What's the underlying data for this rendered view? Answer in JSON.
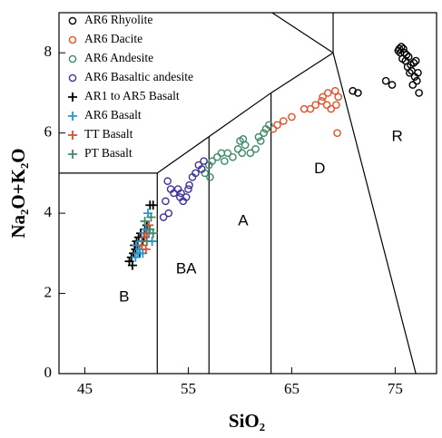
{
  "chart_data": {
    "type": "scatter",
    "x_label": "SiO₂",
    "y_label": "Na₂O+K₂O",
    "xlim": [
      42.5,
      79
    ],
    "ylim": [
      0,
      9
    ],
    "xticks": [
      45,
      55,
      65,
      75
    ],
    "yticks": [
      0,
      2,
      4,
      6,
      8
    ],
    "grid": false,
    "legend": "upper left",
    "boundaries": [
      [
        [
          42.5,
          5
        ],
        [
          52,
          5
        ]
      ],
      [
        [
          52,
          0
        ],
        [
          52,
          5
        ]
      ],
      [
        [
          52,
          5
        ],
        [
          63,
          7
        ]
      ],
      [
        [
          63,
          7
        ],
        [
          69,
          8
        ]
      ],
      [
        [
          57,
          0
        ],
        [
          57,
          5.91
        ]
      ],
      [
        [
          63,
          0
        ],
        [
          63,
          7
        ]
      ],
      [
        [
          69,
          8
        ],
        [
          69,
          9
        ]
      ],
      [
        [
          63.1,
          9
        ],
        [
          69,
          8
        ]
      ],
      [
        [
          69,
          8
        ],
        [
          77,
          0
        ]
      ]
    ],
    "annotations": [
      {
        "text": "B",
        "x": 48.8,
        "y": 1.9
      },
      {
        "text": "BA",
        "x": 54.8,
        "y": 2.6
      },
      {
        "text": "A",
        "x": 60.3,
        "y": 3.8
      },
      {
        "text": "D",
        "x": 67.7,
        "y": 5.1
      },
      {
        "text": "R",
        "x": 75.2,
        "y": 5.9
      }
    ],
    "series": [
      {
        "name": "AR6 Rhyolite",
        "color": "#000000",
        "marker": "circle",
        "x": [
          75.4,
          75.6,
          75.8,
          75.5,
          75.9,
          76.1,
          76.3,
          76.0,
          75.7,
          76.5,
          76.8,
          77.0,
          76.6,
          77.2,
          76.9,
          77.1,
          76.7,
          77.3,
          76.4,
          74.1,
          74.7,
          70.9,
          71.4,
          75.3,
          76.2
        ],
        "values": [
          8.1,
          8.15,
          8.1,
          8.0,
          8.0,
          7.95,
          7.9,
          7.8,
          7.85,
          7.7,
          7.75,
          7.8,
          7.55,
          7.5,
          7.4,
          7.3,
          7.2,
          7.0,
          7.5,
          7.3,
          7.2,
          7.05,
          7.0,
          8.05,
          7.65
        ]
      },
      {
        "name": "AR6 Dacite",
        "color": "#e0502a",
        "marker": "circle",
        "x": [
          63.2,
          63.6,
          64.2,
          65.0,
          66.2,
          66.8,
          67.3,
          68.0,
          68.5,
          69.2,
          69.5,
          68.8,
          69.3,
          69.4,
          67.9,
          68.4
        ],
        "values": [
          6.1,
          6.2,
          6.3,
          6.4,
          6.6,
          6.6,
          6.7,
          6.9,
          7.0,
          7.05,
          6.9,
          6.6,
          6.7,
          6.0,
          6.8,
          6.7
        ]
      },
      {
        "name": "AR6 Andesite",
        "color": "#3f8a66",
        "marker": "circle",
        "x": [
          56.6,
          57.0,
          57.3,
          57.8,
          58.2,
          58.8,
          59.3,
          59.8,
          60.0,
          60.3,
          60.5,
          61.0,
          61.5,
          62.0,
          62.3,
          62.5,
          62.8,
          57.1,
          60.2,
          61.8,
          58.5
        ],
        "values": [
          5.0,
          5.2,
          5.3,
          5.4,
          5.5,
          5.5,
          5.4,
          5.6,
          5.8,
          5.85,
          5.7,
          5.5,
          5.6,
          5.8,
          6.0,
          6.1,
          6.2,
          4.9,
          5.5,
          5.9,
          5.3
        ]
      },
      {
        "name": "AR6 Basaltic andesite",
        "color": "#3d3596",
        "marker": "circle",
        "x": [
          53.0,
          53.3,
          53.6,
          54.0,
          54.2,
          54.5,
          54.8,
          55.1,
          55.4,
          55.7,
          56.0,
          56.3,
          56.5,
          55.0,
          52.8,
          53.1,
          52.6,
          54.3
        ],
        "values": [
          4.8,
          4.6,
          4.5,
          4.6,
          4.4,
          4.3,
          4.4,
          4.7,
          4.9,
          5.0,
          5.2,
          5.1,
          5.3,
          4.6,
          4.3,
          4.0,
          3.9,
          4.5
        ]
      },
      {
        "name": "AR1 to AR5 Basalt",
        "color": "#000000",
        "marker": "plus",
        "x": [
          49.3,
          49.5,
          49.7,
          49.9,
          50.0,
          50.2,
          50.4,
          50.6,
          50.8,
          51.0,
          51.3,
          51.6,
          49.6,
          50.1,
          50.3,
          50.7,
          49.8
        ],
        "values": [
          2.8,
          2.9,
          3.0,
          3.1,
          3.3,
          3.4,
          3.5,
          3.3,
          3.6,
          3.7,
          4.2,
          4.2,
          2.7,
          3.2,
          3.0,
          3.4,
          3.2
        ]
      },
      {
        "name": "AR6 Basalt",
        "color": "#1e9ad6",
        "marker": "plus",
        "x": [
          49.9,
          50.1,
          50.3,
          50.5,
          50.7,
          50.9,
          51.1,
          51.2,
          51.5,
          50.0,
          50.6
        ],
        "values": [
          2.9,
          3.0,
          3.1,
          3.3,
          3.5,
          3.6,
          4.0,
          3.5,
          3.3,
          3.2,
          3.0
        ]
      },
      {
        "name": "TT Basalt",
        "color": "#e04a2a",
        "marker": "plus",
        "x": [
          50.5,
          50.8,
          51.0,
          51.2,
          50.9
        ],
        "values": [
          3.2,
          3.4,
          3.5,
          3.7,
          3.1
        ]
      },
      {
        "name": "PT Basalt",
        "color": "#3f8a66",
        "marker": "plus",
        "x": [
          51.0,
          51.3,
          51.6,
          51.4,
          50.8
        ],
        "values": [
          3.3,
          3.6,
          3.5,
          3.9,
          3.8
        ]
      }
    ]
  }
}
